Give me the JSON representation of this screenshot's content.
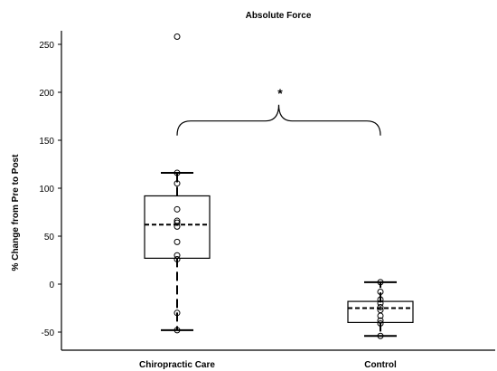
{
  "chart_data": {
    "type": "box",
    "title": "Absolute Force",
    "ylabel": "% Change from Pre to Post",
    "xlabel": "",
    "ylim": [
      -65,
      280
    ],
    "yticks": [
      -50,
      0,
      50,
      100,
      150,
      200,
      250
    ],
    "grid": false,
    "categories": [
      "Chiropractic Care",
      "Control"
    ],
    "boxes": [
      {
        "category": "Chiropractic Care",
        "whisker_low": -48,
        "q1": 27,
        "mean": 62,
        "q3": 92,
        "whisker_high": 116,
        "points": [
          258,
          116,
          105,
          78,
          66,
          64,
          60,
          44,
          30,
          26,
          -30,
          -48
        ]
      },
      {
        "category": "Control",
        "whisker_low": -54,
        "q1": -40,
        "mean": -25,
        "q3": -18,
        "whisker_high": 2,
        "points": [
          2,
          -8,
          -16,
          -20,
          -24,
          -27,
          -33,
          -38,
          -41,
          -54
        ]
      }
    ],
    "annotation": {
      "text": "*",
      "between": [
        "Chiropractic Care",
        "Control"
      ],
      "bracket_value": 155
    }
  }
}
